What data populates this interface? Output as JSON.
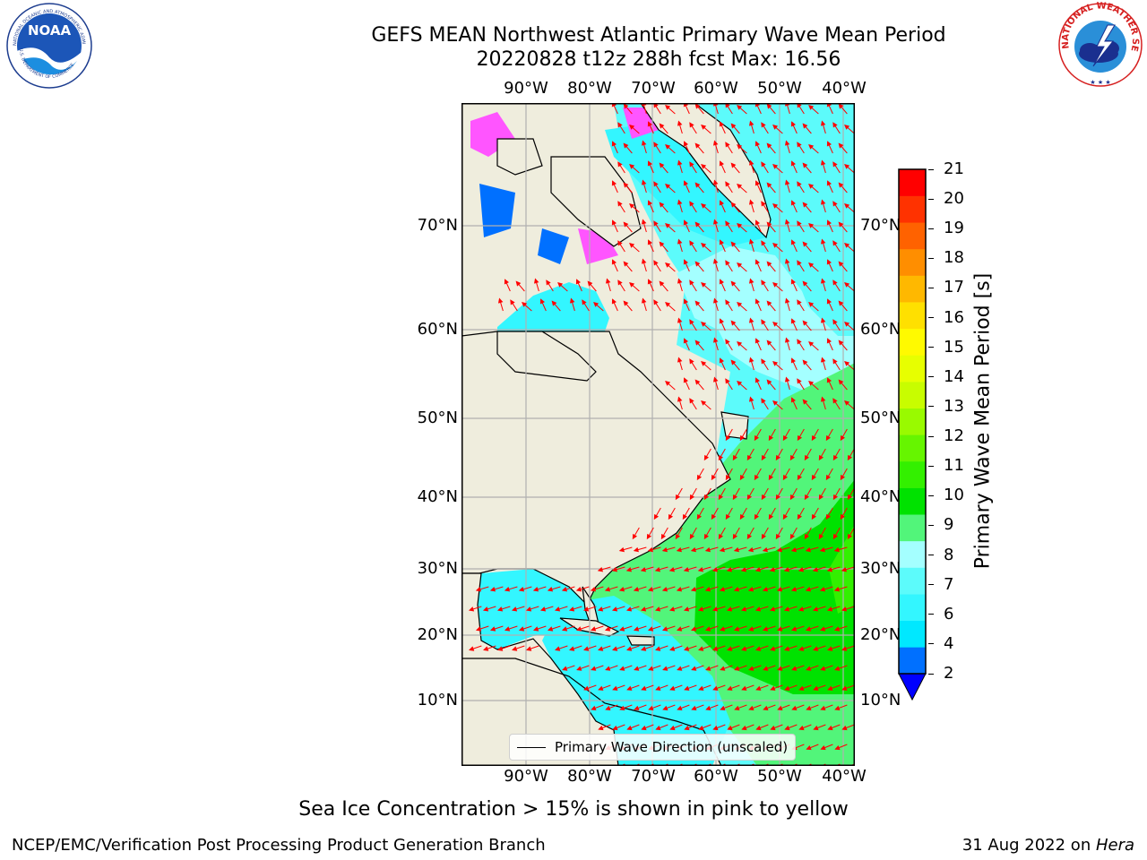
{
  "title": {
    "line1": "GEFS MEAN Northwest Atlantic Primary Wave Mean Period",
    "line2": "20220828 t12z 288h fcst   Max: 16.56"
  },
  "axes": {
    "lon_labels": [
      "90°W",
      "80°W",
      "70°W",
      "60°W",
      "50°W",
      "40°W"
    ],
    "lat_labels": [
      "70°N",
      "60°N",
      "50°N",
      "40°N",
      "30°N",
      "20°N",
      "10°N"
    ]
  },
  "legend": {
    "label": "Primary Wave Direction (unscaled)"
  },
  "colorbar": {
    "label": "Primary Wave Mean Period [s]",
    "ticks": [
      "2",
      "4",
      "6",
      "7",
      "8",
      "9",
      "10",
      "11",
      "12",
      "13",
      "14",
      "15",
      "16",
      "17",
      "18",
      "19",
      "20",
      "21"
    ],
    "colors": [
      "#0070ff",
      "#00e8ff",
      "#33f6ff",
      "#5cfbfb",
      "#a4ffff",
      "#52f57a",
      "#00e200",
      "#33f000",
      "#66f500",
      "#99fa00",
      "#c8fd00",
      "#e7ff00",
      "#fffa00",
      "#ffe000",
      "#ffb800",
      "#ff8e00",
      "#ff6200",
      "#ff3200",
      "#ff0000"
    ],
    "extend_color": "#0000ff"
  },
  "colors": {
    "land": "#efeddd",
    "arrows": "#ff0000",
    "grid": "#b0b0b0",
    "ice": "#ff55ff"
  },
  "caption": "Sea Ice Concentration > 15% is shown in pink to yellow",
  "footer": {
    "left": "NCEP/EMC/Verification Post Processing Product Generation Branch",
    "date": "31 Aug 2022 on ",
    "machine": "Hera"
  },
  "logos": {
    "noaa": "NOAA",
    "noaa_ring": "NATIONAL OCEANIC AND ATMOSPHERIC ADMINISTRATION",
    "noaa_ring_bottom": "U.S. DEPARTMENT OF COMMERCE",
    "nws_ring": "NATIONAL WEATHER SERVICE"
  }
}
